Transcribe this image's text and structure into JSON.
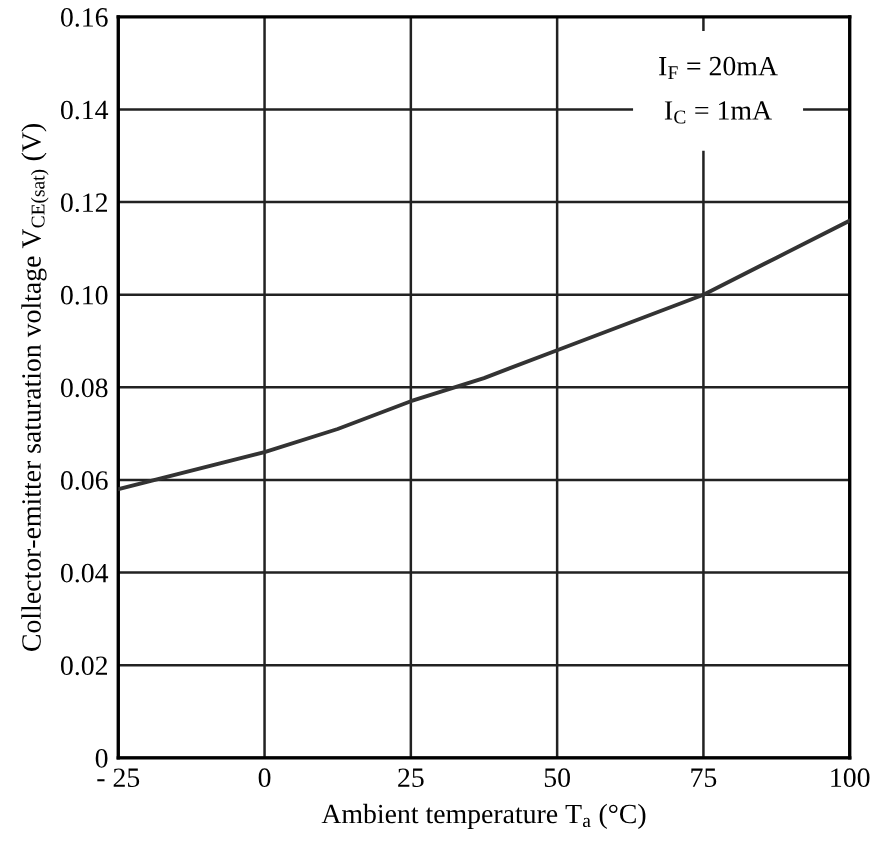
{
  "chart_data": {
    "type": "line",
    "xlabel": "Ambient temperature T$_{a}$ (°C)",
    "ylabel": "Collector-emitter saturation voltage V$_{CE(sat)}$ (V)",
    "x": [
      -25,
      -12.5,
      0,
      12.5,
      25,
      37.5,
      50,
      62.5,
      75,
      87.5,
      100
    ],
    "series": [
      {
        "color": "#333333",
        "values": [
          0.058,
          0.062,
          0.066,
          0.071,
          0.077,
          0.082,
          0.088,
          0.094,
          0.1,
          0.108,
          0.116
        ]
      }
    ],
    "xlim": [
      -25,
      100
    ],
    "xticks": [
      {
        "value": -25,
        "label": "- 25"
      },
      0,
      25,
      50,
      75,
      100
    ],
    "ylim": [
      0,
      0.16
    ],
    "yticks": [
      0,
      0.02,
      0.04,
      0.06,
      0.08,
      {
        "value": 0.1,
        "label": "0.10"
      },
      0.12,
      0.14,
      0.16
    ],
    "grid": true,
    "marker": "none",
    "line_style": "solid",
    "annotations": [
      "I$_{F}$ = 20mA\nI$_{C}$ = 1mA"
    ]
  }
}
